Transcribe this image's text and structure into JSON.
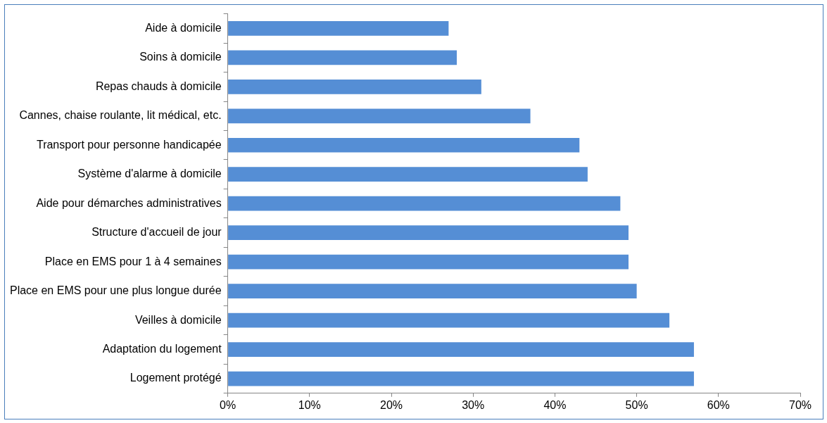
{
  "chart_data": {
    "type": "bar",
    "orientation": "horizontal",
    "categories": [
      "Aide à domicile",
      "Soins à domicile",
      "Repas chauds à domicile",
      "Cannes, chaise roulante, lit médical, etc.",
      "Transport pour personne handicapée",
      "Système d'alarme à domicile",
      "Aide pour démarches administratives",
      "Structure d'accueil de jour",
      "Place en EMS pour 1 à 4 semaines",
      "Place en EMS pour une plus longue durée",
      "Veilles à domicile",
      "Adaptation du logement",
      "Logement protégé"
    ],
    "values": [
      27,
      28,
      31,
      37,
      43,
      44,
      48,
      49,
      49,
      50,
      54,
      57,
      57
    ],
    "color": "#558ed5",
    "xlim": [
      0,
      70
    ],
    "xticks": [
      {
        "value": 0,
        "label": "0%"
      },
      {
        "value": 10,
        "label": "10%"
      },
      {
        "value": 20,
        "label": "20%"
      },
      {
        "value": 30,
        "label": "30%"
      },
      {
        "value": 40,
        "label": "40%"
      },
      {
        "value": 50,
        "label": "50%"
      },
      {
        "value": 60,
        "label": "60%"
      },
      {
        "value": 70,
        "label": "70%"
      }
    ],
    "grid": false,
    "legend": false
  }
}
